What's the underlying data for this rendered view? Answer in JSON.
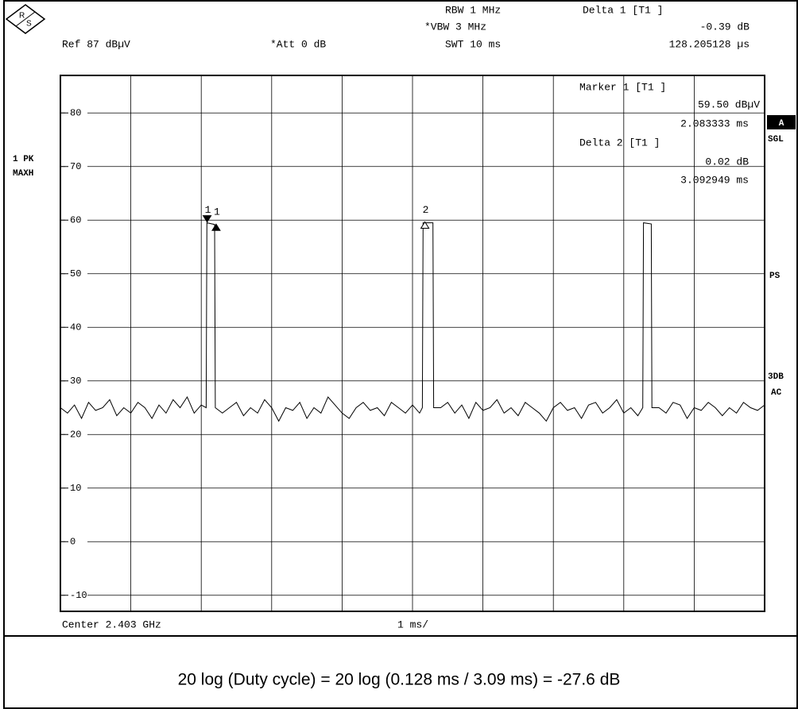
{
  "chart_data": {
    "type": "line",
    "header": {
      "rbw": "RBW  1 MHz",
      "vbw": "*VBW  3 MHz",
      "swt": "SWT  10 ms",
      "ref": "Ref  87 dBµV",
      "att": "*Att  0 dB",
      "delta1_title": "Delta 1 [T1 ]",
      "delta1_level": "-0.39 dB",
      "delta1_time": "128.205128 µs"
    },
    "marker_panel": {
      "marker1_title": "Marker 1 [T1 ]",
      "marker1_level": "59.50 dBµV",
      "marker1_time": "2.083333 ms",
      "delta2_title": "Delta 2 [T1 ]",
      "delta2_level": "0.02 dB",
      "delta2_time": "3.092949 ms"
    },
    "left_labels": [
      "1 PK",
      "MAXH"
    ],
    "right_labels": {
      "a": "A",
      "sgl": "SGL",
      "ps": "PS",
      "db3": "3DB",
      "ac": "AC"
    },
    "center": "Center 2.403 GHz",
    "span": "1 ms/",
    "caption": "20 log (Duty cycle) = 20 log (0.128 ms / 3.09 ms) = -27.6 dB",
    "color": "#000000",
    "xlim": [
      0,
      10
    ],
    "ylim": [
      -13,
      87
    ],
    "yticks": [
      80,
      70,
      60,
      50,
      40,
      30,
      20,
      10,
      0,
      -10
    ],
    "grid": true,
    "x": [
      0,
      0.1,
      0.2,
      0.3,
      0.4,
      0.5,
      0.6,
      0.7,
      0.8,
      0.9,
      1.0,
      1.1,
      1.2,
      1.3,
      1.4,
      1.5,
      1.6,
      1.7,
      1.8,
      1.9,
      2.0,
      2.07,
      2.08,
      2.19,
      2.2,
      2.3,
      2.4,
      2.5,
      2.6,
      2.7,
      2.8,
      2.9,
      3.0,
      3.1,
      3.2,
      3.3,
      3.4,
      3.5,
      3.6,
      3.7,
      3.8,
      3.9,
      4.0,
      4.1,
      4.2,
      4.3,
      4.4,
      4.5,
      4.6,
      4.7,
      4.8,
      4.9,
      5.0,
      5.1,
      5.14,
      5.15,
      5.29,
      5.3,
      5.4,
      5.5,
      5.6,
      5.7,
      5.8,
      5.9,
      6.0,
      6.1,
      6.2,
      6.3,
      6.4,
      6.5,
      6.6,
      6.7,
      6.8,
      6.9,
      7.0,
      7.1,
      7.2,
      7.3,
      7.4,
      7.5,
      7.6,
      7.7,
      7.8,
      7.9,
      8.0,
      8.1,
      8.2,
      8.27,
      8.28,
      8.39,
      8.4,
      8.5,
      8.6,
      8.7,
      8.8,
      8.9,
      9.0,
      9.1,
      9.2,
      9.3,
      9.4,
      9.5,
      9.6,
      9.7,
      9.8,
      9.9,
      10.0
    ],
    "values": [
      25,
      24,
      25.5,
      23,
      26,
      24.5,
      25,
      26.5,
      23.5,
      25,
      24,
      26,
      25,
      23,
      25.5,
      24,
      26.5,
      25,
      27,
      24,
      25.5,
      25,
      59.5,
      59.2,
      25,
      24,
      25,
      26,
      23.5,
      25,
      24,
      26.5,
      25,
      22.5,
      25,
      24.5,
      26,
      23,
      25,
      24,
      27,
      25.5,
      24,
      23,
      25,
      26,
      24.5,
      25,
      23.5,
      26,
      25,
      24,
      25.5,
      24,
      25,
      59.5,
      59.5,
      25,
      25,
      26,
      24,
      25.5,
      23,
      26,
      24.5,
      25,
      26.5,
      24,
      25,
      23.5,
      26,
      25,
      24,
      22.5,
      25,
      26,
      24.5,
      25,
      23,
      25.5,
      26,
      24,
      25,
      26.5,
      24,
      25,
      23.5,
      25,
      59.5,
      59.3,
      25,
      25,
      24,
      26,
      25.5,
      23,
      25,
      24.5,
      26,
      25,
      23.5,
      25,
      24,
      26,
      25,
      24.5,
      25.5
    ],
    "markers": [
      {
        "label": "1",
        "x": 2.083333,
        "y": 59.5,
        "shape": "down"
      },
      {
        "label": "1",
        "x": 2.211538,
        "y": 59.11,
        "shape": "up"
      },
      {
        "label": "2",
        "x": 5.176282,
        "y": 59.52,
        "shape": "up-open"
      }
    ]
  }
}
